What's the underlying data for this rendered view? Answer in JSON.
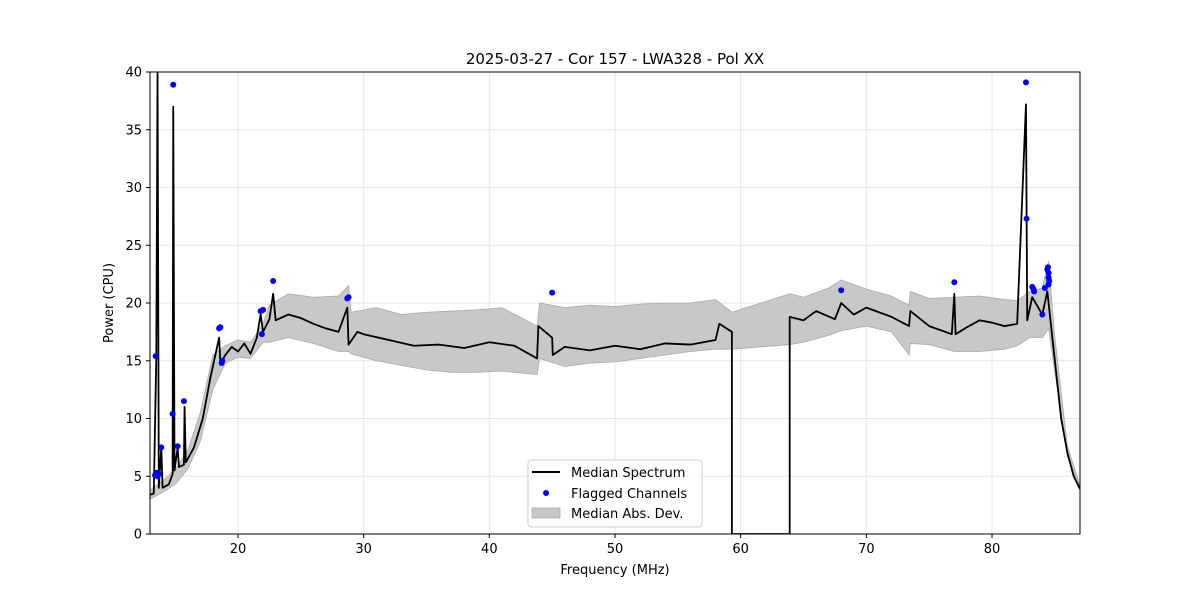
{
  "chart_data": {
    "type": "line",
    "title": "2025-03-27 - Cor 157 - LWA328 - Pol XX",
    "xlabel": "Frequency (MHz)",
    "ylabel": "Power (CPU)",
    "xlim": [
      13.0,
      87.0
    ],
    "ylim": [
      0,
      40
    ],
    "x_ticks": [
      20,
      30,
      40,
      50,
      60,
      70,
      80
    ],
    "y_ticks": [
      0,
      5,
      10,
      15,
      20,
      25,
      30,
      35,
      40
    ],
    "grid": true,
    "legend_position": "bottom-center",
    "colors": {
      "median": "#000000",
      "flagged": "#0000ff",
      "mad_fill": "#c8c8c8",
      "mad_edge": "#aaaaaa",
      "grid": "#e6e6e6"
    },
    "series": [
      {
        "name": "Median Spectrum",
        "kind": "line",
        "points": [
          [
            13.0,
            3.4
          ],
          [
            13.3,
            3.5
          ],
          [
            13.5,
            15.2
          ],
          [
            13.6,
            40.0
          ],
          [
            13.7,
            4.0
          ],
          [
            13.9,
            7.5
          ],
          [
            14.0,
            4.0
          ],
          [
            14.5,
            4.3
          ],
          [
            14.8,
            5.2
          ],
          [
            14.85,
            37.0
          ],
          [
            14.95,
            5.5
          ],
          [
            15.2,
            7.5
          ],
          [
            15.3,
            5.8
          ],
          [
            15.7,
            6.0
          ],
          [
            15.75,
            11.0
          ],
          [
            15.85,
            6.2
          ],
          [
            16.5,
            7.5
          ],
          [
            17.2,
            10.0
          ],
          [
            17.8,
            13.5
          ],
          [
            18.3,
            16.0
          ],
          [
            18.5,
            17.0
          ],
          [
            18.6,
            14.8
          ],
          [
            19.0,
            15.5
          ],
          [
            19.5,
            16.2
          ],
          [
            20.0,
            15.8
          ],
          [
            20.5,
            16.5
          ],
          [
            21.0,
            15.6
          ],
          [
            21.5,
            17.0
          ],
          [
            21.8,
            19.0
          ],
          [
            22.0,
            17.5
          ],
          [
            22.5,
            18.6
          ],
          [
            22.8,
            20.8
          ],
          [
            23.0,
            18.5
          ],
          [
            24.0,
            19.0
          ],
          [
            25.0,
            18.7
          ],
          [
            26.0,
            18.2
          ],
          [
            27.0,
            17.8
          ],
          [
            28.0,
            17.5
          ],
          [
            28.7,
            19.6
          ],
          [
            28.8,
            16.4
          ],
          [
            29.5,
            17.5
          ],
          [
            30.0,
            17.3
          ],
          [
            32.0,
            16.8
          ],
          [
            34.0,
            16.3
          ],
          [
            36.0,
            16.4
          ],
          [
            38.0,
            16.1
          ],
          [
            40.0,
            16.6
          ],
          [
            42.0,
            16.3
          ],
          [
            43.8,
            15.2
          ],
          [
            43.9,
            18.0
          ],
          [
            45.0,
            17.0
          ],
          [
            45.05,
            15.5
          ],
          [
            46.0,
            16.2
          ],
          [
            48.0,
            15.9
          ],
          [
            50.0,
            16.3
          ],
          [
            52.0,
            16.0
          ],
          [
            54.0,
            16.5
          ],
          [
            56.0,
            16.4
          ],
          [
            58.0,
            16.8
          ],
          [
            58.3,
            18.2
          ],
          [
            59.3,
            17.5
          ],
          [
            59.3,
            0.0
          ],
          [
            63.9,
            0.0
          ],
          [
            63.9,
            18.8
          ],
          [
            65.0,
            18.5
          ],
          [
            66.0,
            19.3
          ],
          [
            67.5,
            18.6
          ],
          [
            68.0,
            20.0
          ],
          [
            69.0,
            19.0
          ],
          [
            70.0,
            19.6
          ],
          [
            72.0,
            18.8
          ],
          [
            73.4,
            18.0
          ],
          [
            73.5,
            19.3
          ],
          [
            75.0,
            18.0
          ],
          [
            76.8,
            17.3
          ],
          [
            77.0,
            20.8
          ],
          [
            77.1,
            17.3
          ],
          [
            78.0,
            17.9
          ],
          [
            79.0,
            18.5
          ],
          [
            80.0,
            18.3
          ],
          [
            81.0,
            18.0
          ],
          [
            82.0,
            18.2
          ],
          [
            82.7,
            37.2
          ],
          [
            82.8,
            18.5
          ],
          [
            83.2,
            20.5
          ],
          [
            84.0,
            19.0
          ],
          [
            84.4,
            21.0
          ],
          [
            85.0,
            15.0
          ],
          [
            85.5,
            10.0
          ],
          [
            86.0,
            7.0
          ],
          [
            86.5,
            5.0
          ],
          [
            87.0,
            3.9
          ]
        ]
      },
      {
        "name": "Flagged Channels",
        "kind": "scatter",
        "points": [
          [
            13.4,
            5.1
          ],
          [
            13.45,
            15.4
          ],
          [
            13.5,
            5.3
          ],
          [
            13.6,
            5.0
          ],
          [
            13.7,
            5.2
          ],
          [
            13.9,
            7.5
          ],
          [
            14.8,
            10.4
          ],
          [
            14.85,
            38.9
          ],
          [
            15.2,
            7.6
          ],
          [
            15.7,
            11.5
          ],
          [
            18.5,
            17.8
          ],
          [
            18.6,
            17.9
          ],
          [
            18.7,
            14.8
          ],
          [
            18.75,
            15.0
          ],
          [
            21.8,
            19.3
          ],
          [
            21.9,
            17.3
          ],
          [
            22.0,
            19.4
          ],
          [
            22.8,
            21.9
          ],
          [
            28.7,
            20.4
          ],
          [
            28.8,
            20.5
          ],
          [
            45.0,
            20.9
          ],
          [
            68.0,
            21.1
          ],
          [
            77.0,
            21.8
          ],
          [
            82.7,
            39.1
          ],
          [
            82.75,
            27.3
          ],
          [
            83.2,
            21.4
          ],
          [
            83.3,
            21.2
          ],
          [
            83.35,
            21.0
          ],
          [
            84.0,
            19.0
          ],
          [
            84.2,
            21.3
          ],
          [
            84.4,
            22.9
          ],
          [
            84.45,
            23.1
          ],
          [
            84.5,
            22.6
          ],
          [
            84.5,
            22.2
          ],
          [
            84.55,
            21.9
          ],
          [
            84.5,
            21.6
          ]
        ]
      },
      {
        "name": "Median Abs. Dev.",
        "kind": "band",
        "x": [
          13.0,
          14.0,
          15.0,
          16.0,
          17.0,
          18.0,
          19.0,
          20.0,
          21.0,
          22.0,
          22.5,
          24.0,
          26.0,
          28.0,
          28.8,
          29.0,
          31.0,
          33.0,
          35.0,
          37.0,
          39.0,
          41.0,
          43.8,
          44.0,
          46.0,
          48.0,
          50.0,
          52.0,
          54.0,
          56.0,
          58.0,
          59.3,
          63.9,
          65.0,
          67.0,
          68.0,
          70.0,
          72.0,
          73.4,
          73.5,
          75.0,
          77.0,
          79.0,
          81.0,
          82.0,
          83.0,
          84.0,
          84.5,
          85.0,
          86.0,
          87.0
        ],
        "lower": [
          3.0,
          3.6,
          4.3,
          5.6,
          8.0,
          12.5,
          14.8,
          15.3,
          15.2,
          16.6,
          16.6,
          17.0,
          16.5,
          15.8,
          15.8,
          15.6,
          15.0,
          14.6,
          14.2,
          14.0,
          14.0,
          14.1,
          13.8,
          15.2,
          14.5,
          14.8,
          14.9,
          15.2,
          15.5,
          15.8,
          16.0,
          16.0,
          16.4,
          16.6,
          17.2,
          17.6,
          18.0,
          17.5,
          15.5,
          16.5,
          16.4,
          15.8,
          15.8,
          16.0,
          16.3,
          17.0,
          17.0,
          17.8,
          14.0,
          6.8,
          3.8
        ],
        "upper": [
          3.8,
          4.6,
          5.6,
          7.2,
          10.5,
          15.5,
          16.3,
          16.8,
          16.6,
          18.2,
          19.8,
          20.8,
          20.5,
          20.6,
          21.5,
          19.2,
          19.6,
          19.0,
          19.2,
          19.3,
          19.4,
          19.6,
          18.0,
          20.0,
          19.6,
          19.8,
          19.7,
          19.9,
          20.0,
          20.0,
          20.3,
          19.2,
          20.8,
          20.5,
          21.3,
          22.0,
          21.2,
          20.6,
          19.8,
          21.0,
          20.4,
          20.5,
          20.6,
          20.3,
          20.2,
          21.0,
          21.3,
          23.6,
          17.0,
          7.6,
          4.2
        ]
      }
    ]
  }
}
